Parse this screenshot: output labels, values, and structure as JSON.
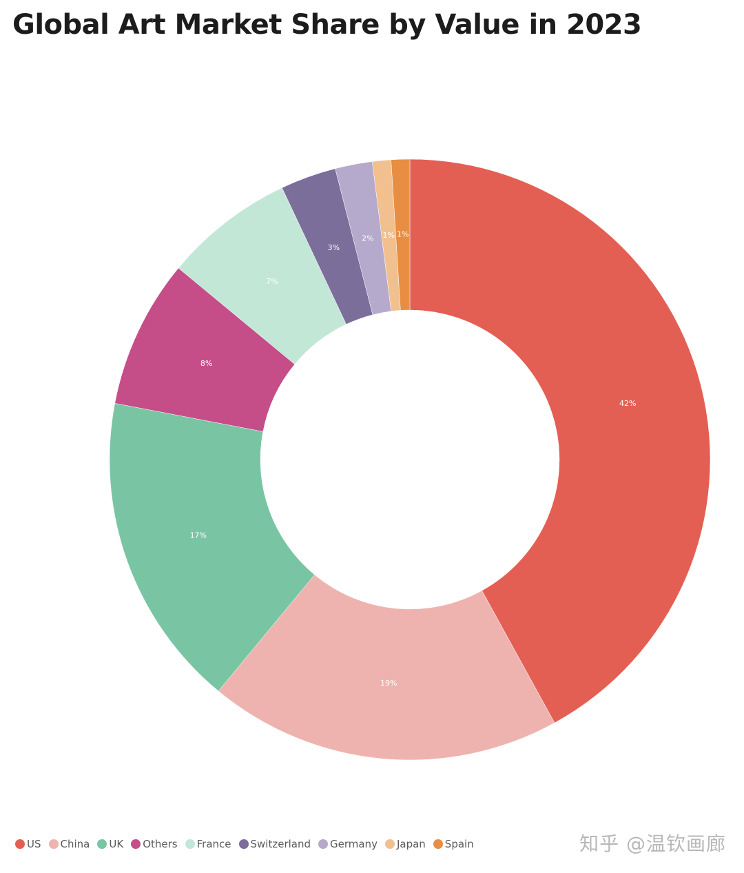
{
  "watermark": "知乎 @温钦画廊",
  "chart_data": {
    "type": "pie",
    "variant": "donut",
    "title": "Global Art Market Share by Value in 2023",
    "legend_position": "bottom-left",
    "categories": [
      "US",
      "China",
      "UK",
      "Others",
      "France",
      "Switzerland",
      "Germany",
      "Japan",
      "Spain"
    ],
    "values": [
      42,
      19,
      17,
      8,
      7,
      3,
      2,
      1,
      1
    ],
    "labels": [
      "42%",
      "19%",
      "17%",
      "8%",
      "7%",
      "3%",
      "2%",
      "1%",
      "1%"
    ],
    "colors": [
      "#e45f53",
      "#efb3af",
      "#79c5a3",
      "#c54d88",
      "#c2e7d7",
      "#7b6e9b",
      "#b5aacb",
      "#f2c08f",
      "#e88e42"
    ]
  }
}
